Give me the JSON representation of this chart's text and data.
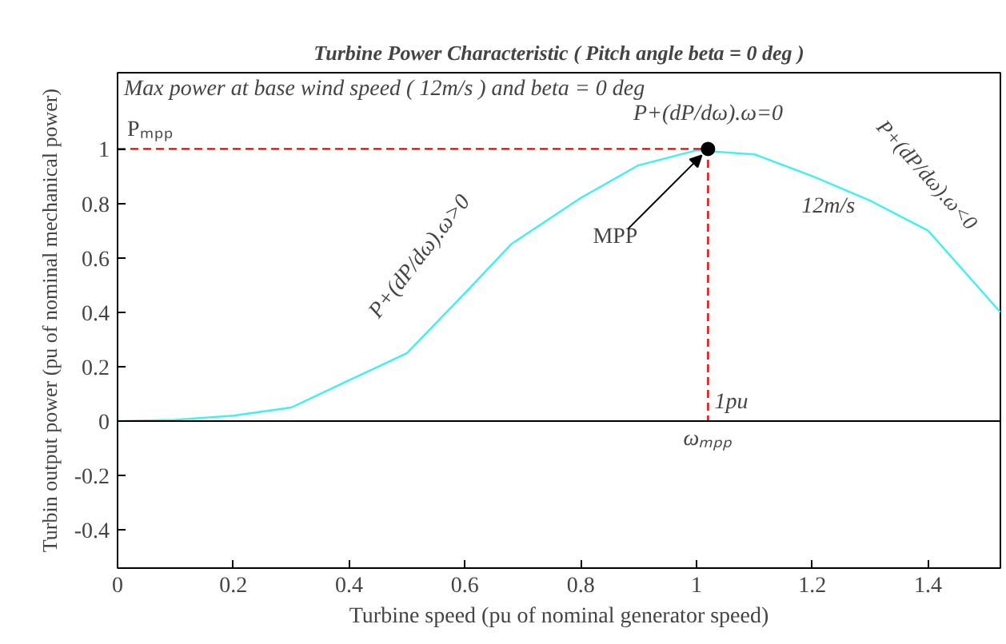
{
  "chart_data": {
    "type": "line",
    "title": "Turbine Power Characteristic ( Pitch angle beta = 0 deg )",
    "xlabel": "Turbine speed (pu of nominal generator speed)",
    "ylabel": "Turbin output power (pu of nominal mechanical power)",
    "xlim": [
      0,
      1.525
    ],
    "ylim": [
      -0.54,
      1.28
    ],
    "xticks": [
      0,
      0.2,
      0.4,
      0.6,
      0.8,
      1,
      1.2,
      1.4
    ],
    "yticks": [
      -0.4,
      -0.2,
      0,
      0.2,
      0.4,
      0.6,
      0.8,
      1
    ],
    "grid": false,
    "series": [
      {
        "color": "#40f0f0",
        "line_style": "solid",
        "x": [
          0,
          0.1,
          0.2,
          0.3,
          0.4,
          0.44,
          0.5,
          0.6,
          0.68,
          0.8,
          0.9,
          1.0,
          1.1,
          1.2,
          1.3,
          1.4,
          1.525
        ],
        "values": [
          0,
          0.005,
          0.02,
          0.05,
          0.15,
          0.19,
          0.25,
          0.47,
          0.65,
          0.82,
          0.94,
          0.995,
          0.98,
          0.9,
          0.81,
          0.7,
          0.4
        ]
      },
      {
        "type": "line",
        "color": "#ff0000",
        "line_style": "dashed",
        "x": [
          0,
          1.02,
          1.02
        ],
        "values": [
          1,
          1,
          0
        ]
      },
      {
        "type": "scatter",
        "color": "#000000",
        "marker": "circle",
        "x": [
          1.02
        ],
        "values": [
          1.0
        ]
      }
    ],
    "ref_lines": [
      {
        "axis": "y",
        "value": 0,
        "color": "#000000",
        "line_style": "solid"
      }
    ],
    "annotations": [
      "Max power at base wind speed ( 12m/s ) and beta = 0 deg",
      {
        "text": "Pₘₚₚ",
        "x": 0,
        "y": 1
      },
      {
        "text": "MPP",
        "x": 1.02,
        "y": 1.0
      },
      {
        "text": "P+(dP/dω).ω=0",
        "x": 1.02,
        "y": 1.0
      },
      {
        "text": "P+(dP/dω).ω>0",
        "x": 0.6,
        "y": 0.47
      },
      {
        "text": "P+(dP/dω).ω<0",
        "x": 1.4,
        "y": 0.7
      },
      {
        "text": "12m/s",
        "x": 1.2,
        "y": 0.9
      },
      {
        "text": "1pu",
        "x": 1.02,
        "y": 0
      },
      {
        "text": "ωₘₚₚ",
        "x": 1.02,
        "y": 0
      }
    ]
  }
}
